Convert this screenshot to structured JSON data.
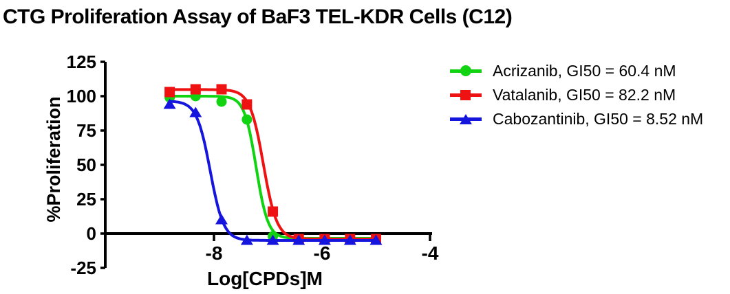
{
  "title": "CTG Proliferation Assay of BaF3 TEL-KDR Cells (C12)",
  "axes": {
    "x_label": "Log[CPDs]M",
    "y_label": "%Proliferation"
  },
  "colors": {
    "acrizanib_green": "#12d312",
    "vatalanib_red": "#ee1212",
    "cabozantinib_blue": "#1515dd",
    "axis_black": "#000000"
  },
  "legend": {
    "position": "right",
    "items": [
      {
        "label": "Acrizanib, GI50 = 60.4 nM",
        "color": "#12d312",
        "marker": "circle"
      },
      {
        "label": "Vatalanib, GI50 = 82.2 nM",
        "color": "#ee1212",
        "marker": "square"
      },
      {
        "label": "Cabozantinib, GI50 = 8.52 nM",
        "color": "#1515dd",
        "marker": "triangle"
      }
    ]
  },
  "chart_data": {
    "type": "line",
    "title": "CTG Proliferation Assay of BaF3 TEL-KDR Cells (C12)",
    "xlabel": "Log[CPDs]M",
    "ylabel": "%Proliferation",
    "xlim": [
      -10,
      -3.95
    ],
    "ylim": [
      -25,
      125
    ],
    "xticks": [
      -8,
      -6,
      -4
    ],
    "yticks": [
      125,
      100,
      75,
      50,
      25,
      0,
      -25
    ],
    "grid": false,
    "legend_position": "right",
    "x": [
      -8.82,
      -8.34,
      -7.86,
      -7.39,
      -6.91,
      -6.43,
      -5.95,
      -5.48,
      -5.0
    ],
    "series": [
      {
        "name": "Acrizanib",
        "gi50_nM": 60.4,
        "color": "#12d312",
        "marker": "circle",
        "values": [
          99,
          100,
          96,
          83,
          -2,
          -4,
          -4,
          -4,
          -4
        ],
        "fit": {
          "top": 100,
          "bottom": -3.5,
          "logGI50": -7.219,
          "hill": 4.0
        }
      },
      {
        "name": "Vatalanib",
        "gi50_nM": 82.2,
        "color": "#ee1212",
        "marker": "square",
        "values": [
          103,
          105,
          105,
          94,
          16,
          -4,
          -4,
          -4,
          -4
        ],
        "fit": {
          "top": 104.8,
          "bottom": -4,
          "logGI50": -7.085,
          "hill": 3.5
        }
      },
      {
        "name": "Cabozantinib",
        "gi50_nM": 8.52,
        "color": "#1515dd",
        "marker": "triangle",
        "values": [
          94,
          88,
          10,
          -5,
          -5,
          -5,
          -5,
          -5,
          -5
        ],
        "fit": {
          "top": 96.5,
          "bottom": -5,
          "logGI50": -8.07,
          "hill": 3.5
        }
      }
    ]
  }
}
